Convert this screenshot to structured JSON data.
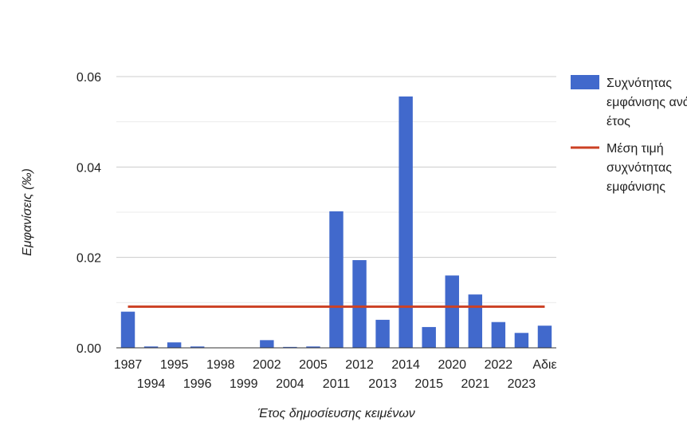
{
  "chart_data": {
    "type": "bar",
    "xlabel": "Έτος δημοσίευσης κειμένων",
    "ylabel": "Εμφανίσεις (‰)",
    "ylim": [
      0,
      0.06
    ],
    "yticks": [
      "0.00",
      "0.02",
      "0.04",
      "0.06"
    ],
    "grid": true,
    "legend_position": "right",
    "categories": [
      "1987",
      "1994",
      "1995",
      "1996",
      "1998",
      "1999",
      "2002",
      "2004",
      "2005",
      "2011",
      "2012",
      "2013",
      "2014",
      "2015",
      "2020",
      "2021",
      "2022",
      "2023",
      "Αδιε"
    ],
    "series": [
      {
        "name": "Συχνότητας εμφάνισης ανά έτος",
        "type": "bar",
        "color": "#4169CC",
        "values": [
          0.008,
          0.0003,
          0.0012,
          0.0003,
          0.0,
          0.0,
          0.0017,
          0.0002,
          0.0003,
          0.0302,
          0.0194,
          0.0062,
          0.0556,
          0.0046,
          0.016,
          0.0118,
          0.0057,
          0.0033,
          0.0049
        ]
      },
      {
        "name": "Μέση τιμή συχνότητας εμφάνισης",
        "type": "line",
        "color": "#CC4124",
        "value": 0.0091
      }
    ]
  }
}
